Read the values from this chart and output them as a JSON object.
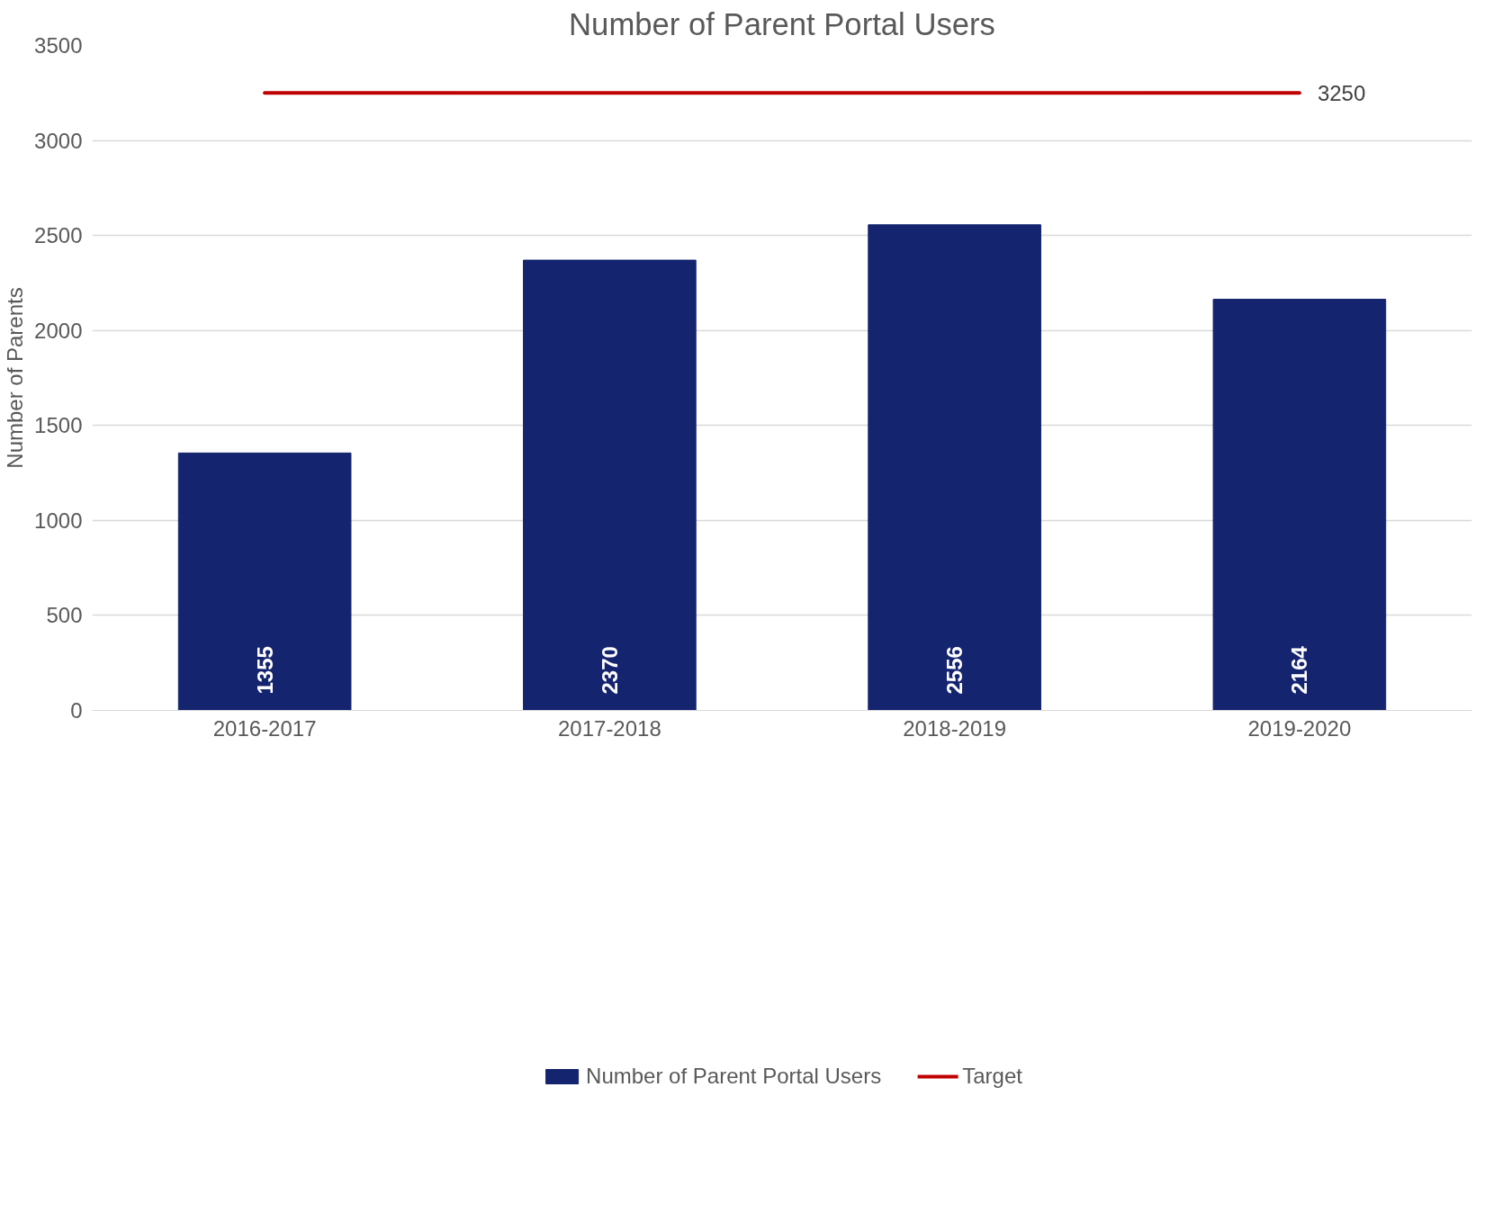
{
  "chart_data": {
    "type": "bar",
    "title": "Number of Parent Portal Users",
    "ylabel": "Number of Parents",
    "categories": [
      "2016-2017",
      "2017-2018",
      "2018-2019",
      "2019-2020"
    ],
    "series": [
      {
        "name": "Number of Parent Portal Users",
        "color": "#14246e",
        "values": [
          1355,
          2370,
          2556,
          2164
        ],
        "value_labels": [
          "1355",
          "2370",
          "2556",
          "2164"
        ]
      },
      {
        "name": "Target",
        "type": "line",
        "color": "#c00000",
        "values": [
          3250,
          3250,
          3250,
          3250
        ],
        "value_labels": [
          null,
          null,
          null,
          "3250"
        ]
      }
    ],
    "ylim": [
      0,
      3500
    ],
    "yticks": [
      0,
      500,
      1000,
      1500,
      2000,
      2500,
      3000,
      3500
    ],
    "grid": "y",
    "legend": "bottom"
  }
}
